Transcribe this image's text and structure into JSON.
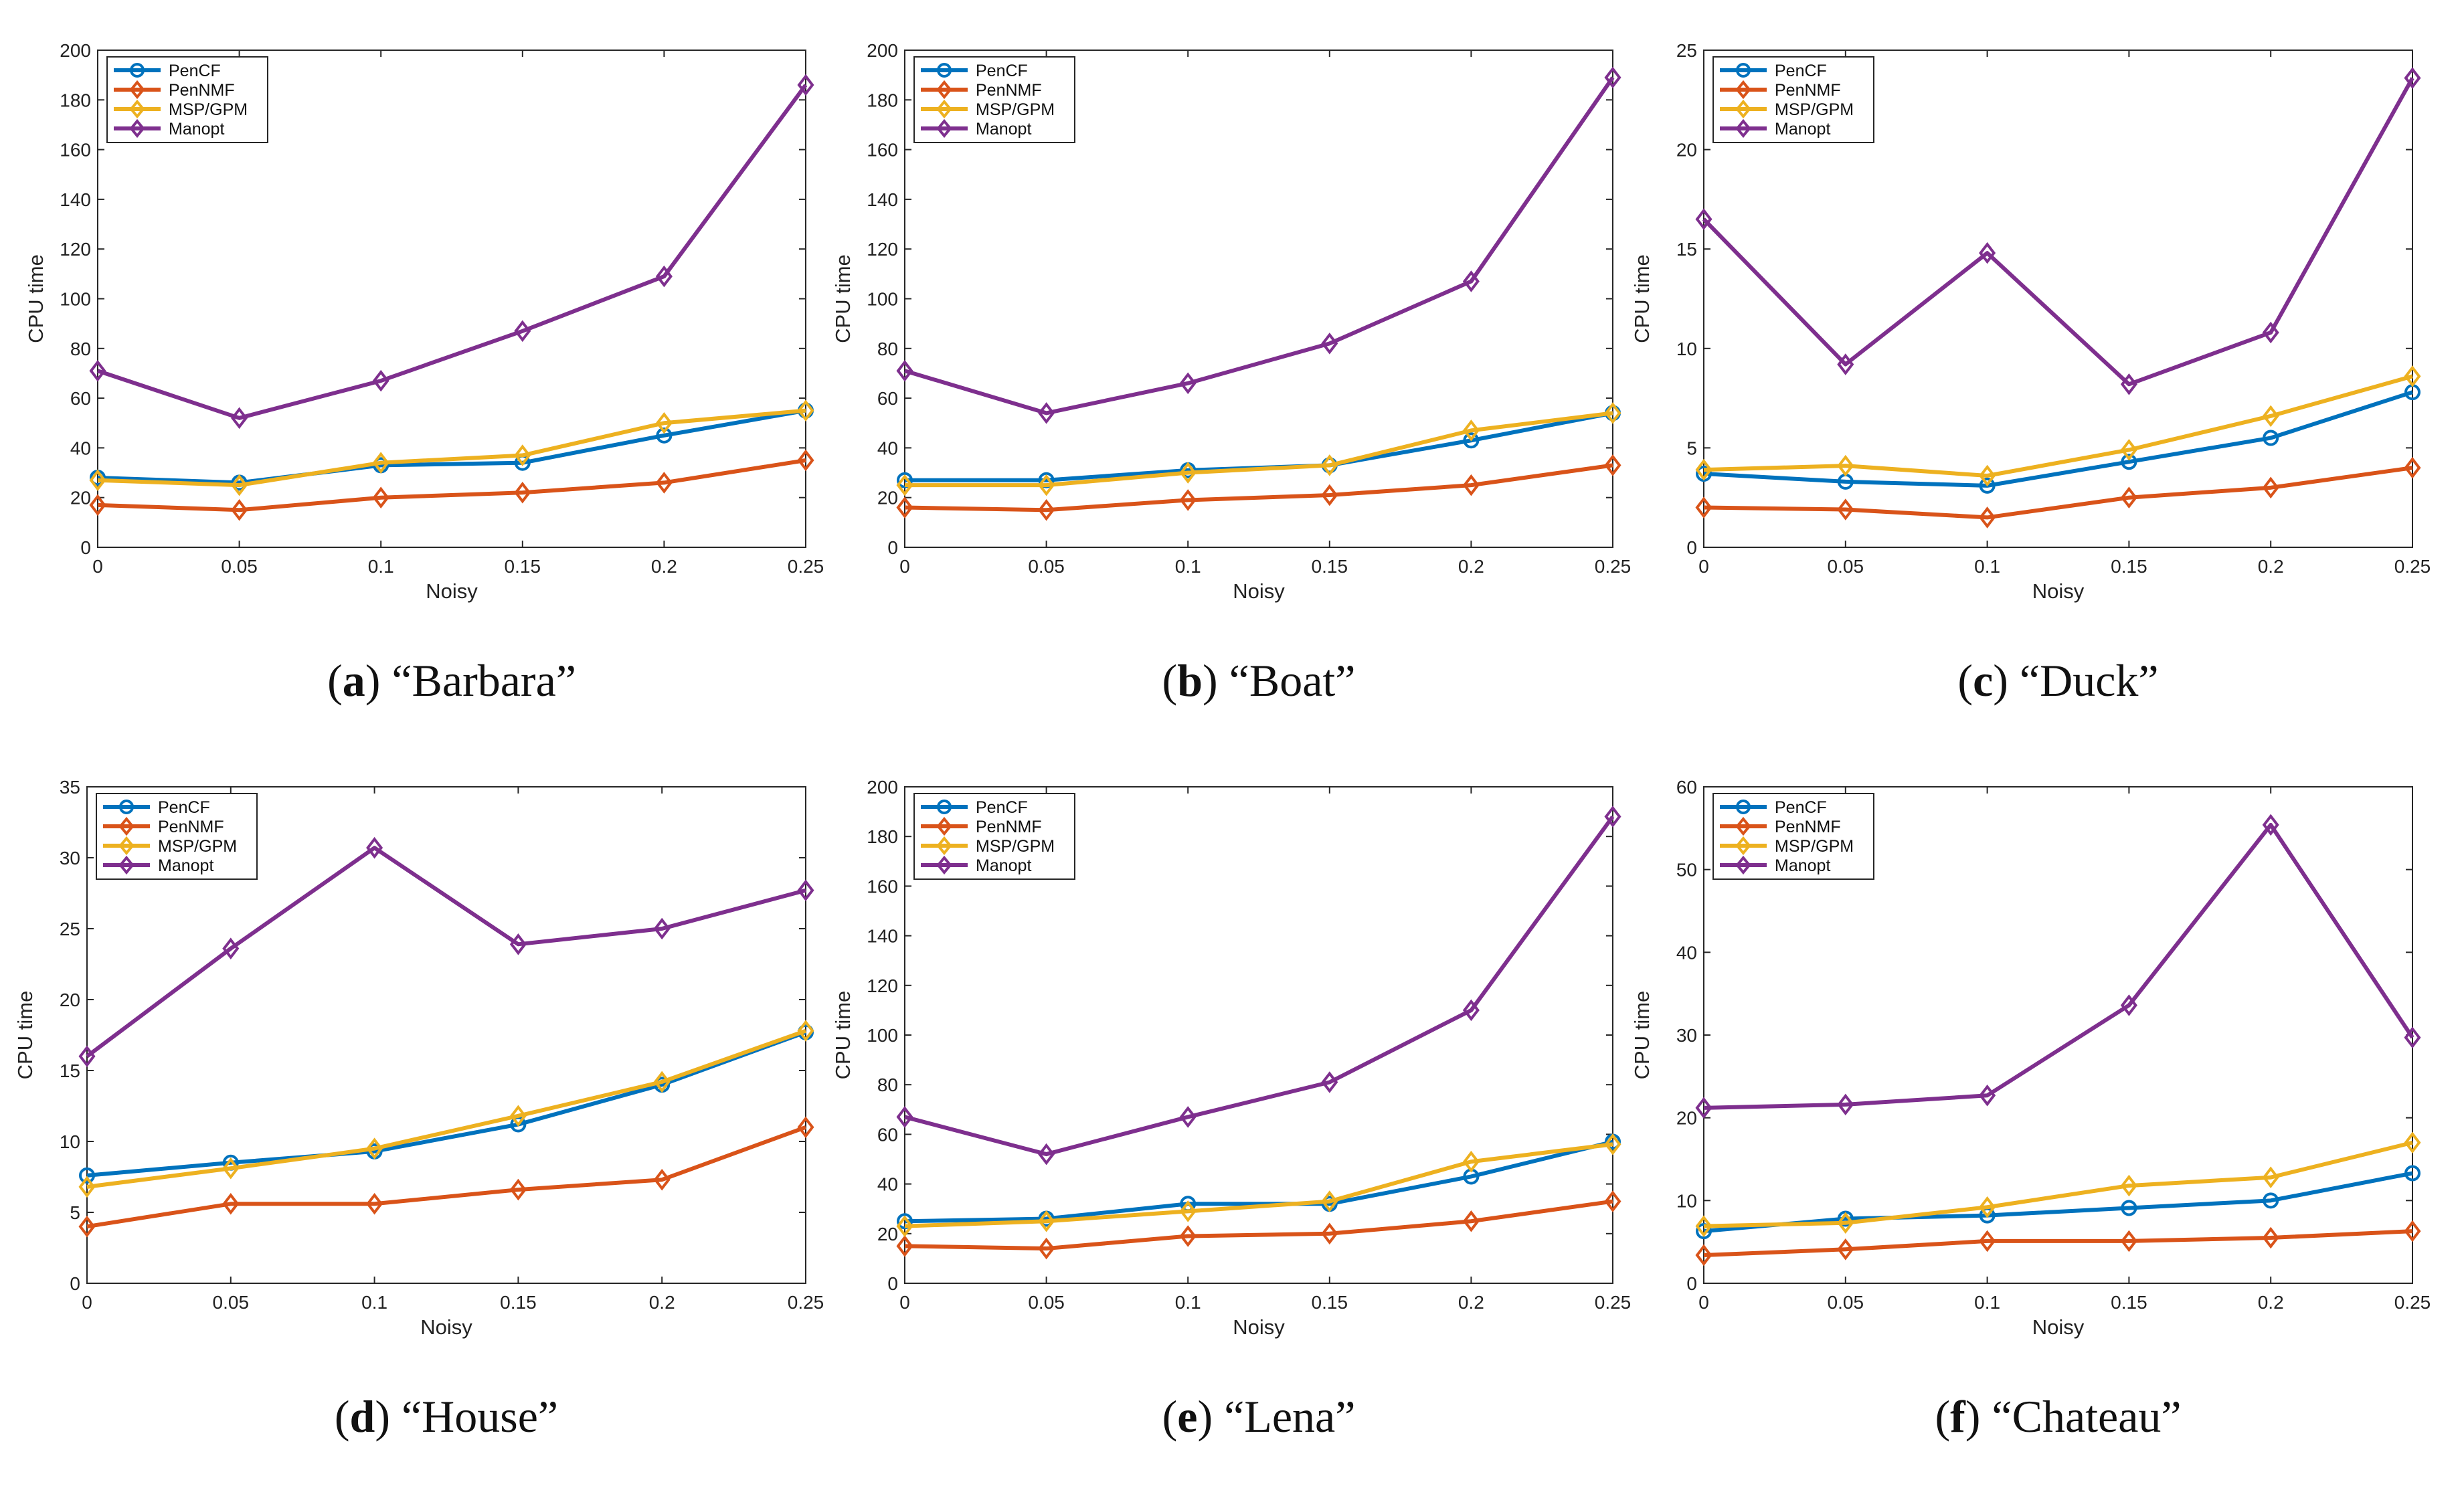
{
  "colors": {
    "PenCF": "#0072BD",
    "PenNMF": "#D95319",
    "MSP/GPM": "#EDB120",
    "Manopt": "#7E2F8E"
  },
  "chart_data": [
    {
      "type": "line",
      "caption": {
        "letter": "a",
        "name": "“Barbara”"
      },
      "xlabel": "Noisy",
      "ylabel": "CPU time",
      "x": [
        0,
        0.05,
        0.1,
        0.15,
        0.2,
        0.25
      ],
      "x_ticks": [
        "0",
        "0.05",
        "0.1",
        "0.15",
        "0.2",
        "0.25"
      ],
      "ylim": [
        0,
        200
      ],
      "y_ticks": [
        "0",
        "20",
        "40",
        "60",
        "80",
        "100",
        "120",
        "140",
        "160",
        "180",
        "200"
      ],
      "legend": "top-left",
      "series": [
        {
          "name": "PenCF",
          "marker": "circle",
          "values": [
            28,
            26,
            33,
            34,
            45,
            55
          ]
        },
        {
          "name": "PenNMF",
          "marker": "diamond",
          "values": [
            17,
            15,
            20,
            22,
            26,
            35
          ]
        },
        {
          "name": "MSP/GPM",
          "marker": "diamond",
          "values": [
            27,
            25,
            34,
            37,
            50,
            55
          ]
        },
        {
          "name": "Manopt",
          "marker": "diamond",
          "values": [
            71,
            52,
            67,
            87,
            109,
            186
          ]
        }
      ]
    },
    {
      "type": "line",
      "caption": {
        "letter": "b",
        "name": "“Boat”"
      },
      "xlabel": "Noisy",
      "ylabel": "CPU time",
      "x": [
        0,
        0.05,
        0.1,
        0.15,
        0.2,
        0.25
      ],
      "x_ticks": [
        "0",
        "0.05",
        "0.1",
        "0.15",
        "0.2",
        "0.25"
      ],
      "ylim": [
        0,
        200
      ],
      "y_ticks": [
        "0",
        "20",
        "40",
        "60",
        "80",
        "100",
        "120",
        "140",
        "160",
        "180",
        "200"
      ],
      "legend": "top-left",
      "series": [
        {
          "name": "PenCF",
          "marker": "circle",
          "values": [
            27,
            27,
            31,
            33,
            43,
            54
          ]
        },
        {
          "name": "PenNMF",
          "marker": "diamond",
          "values": [
            16,
            15,
            19,
            21,
            25,
            33
          ]
        },
        {
          "name": "MSP/GPM",
          "marker": "diamond",
          "values": [
            25,
            25,
            30,
            33,
            47,
            54
          ]
        },
        {
          "name": "Manopt",
          "marker": "diamond",
          "values": [
            71,
            54,
            66,
            82,
            107,
            189
          ]
        }
      ]
    },
    {
      "type": "line",
      "caption": {
        "letter": "c",
        "name": "“Duck”"
      },
      "xlabel": "Noisy",
      "ylabel": "CPU time",
      "x": [
        0,
        0.05,
        0.1,
        0.15,
        0.2,
        0.25
      ],
      "x_ticks": [
        "0",
        "0.05",
        "0.1",
        "0.15",
        "0.2",
        "0.25"
      ],
      "ylim": [
        0,
        25
      ],
      "y_ticks": [
        "0",
        "5",
        "10",
        "15",
        "20",
        "25"
      ],
      "legend": "top-left",
      "series": [
        {
          "name": "PenCF",
          "marker": "circle",
          "values": [
            3.7,
            3.3,
            3.1,
            4.3,
            5.5,
            7.8
          ]
        },
        {
          "name": "PenNMF",
          "marker": "diamond",
          "values": [
            2.0,
            1.9,
            1.5,
            2.5,
            3.0,
            4.0
          ]
        },
        {
          "name": "MSP/GPM",
          "marker": "diamond",
          "values": [
            3.9,
            4.1,
            3.6,
            4.9,
            6.6,
            8.6
          ]
        },
        {
          "name": "Manopt",
          "marker": "diamond",
          "values": [
            16.5,
            9.2,
            14.8,
            8.2,
            10.8,
            23.6
          ]
        }
      ]
    },
    {
      "type": "line",
      "caption": {
        "letter": "d",
        "name": "“House”"
      },
      "xlabel": "Noisy",
      "ylabel": "CPU time",
      "x": [
        0,
        0.05,
        0.1,
        0.15,
        0.2,
        0.25
      ],
      "x_ticks": [
        "0",
        "0.05",
        "0.1",
        "0.15",
        "0.2",
        "0.25"
      ],
      "ylim": [
        0,
        35
      ],
      "y_ticks": [
        "0",
        "5",
        "10",
        "15",
        "20",
        "25",
        "30",
        "35"
      ],
      "legend": "top-left",
      "series": [
        {
          "name": "PenCF",
          "marker": "circle",
          "values": [
            7.6,
            8.5,
            9.3,
            11.2,
            14.0,
            17.7
          ]
        },
        {
          "name": "PenNMF",
          "marker": "diamond",
          "values": [
            4.0,
            5.6,
            5.6,
            6.6,
            7.3,
            11.0
          ]
        },
        {
          "name": "MSP/GPM",
          "marker": "diamond",
          "values": [
            6.8,
            8.1,
            9.5,
            11.8,
            14.2,
            17.8
          ]
        },
        {
          "name": "Manopt",
          "marker": "diamond",
          "values": [
            16.0,
            23.6,
            30.7,
            23.9,
            25.0,
            27.7
          ]
        }
      ]
    },
    {
      "type": "line",
      "caption": {
        "letter": "e",
        "name": "“Lena”"
      },
      "xlabel": "Noisy",
      "ylabel": "CPU time",
      "x": [
        0,
        0.05,
        0.1,
        0.15,
        0.2,
        0.25
      ],
      "x_ticks": [
        "0",
        "0.05",
        "0.1",
        "0.15",
        "0.2",
        "0.25"
      ],
      "ylim": [
        0,
        200
      ],
      "y_ticks": [
        "0",
        "20",
        "40",
        "60",
        "80",
        "100",
        "120",
        "140",
        "160",
        "180",
        "200"
      ],
      "legend": "top-left",
      "series": [
        {
          "name": "PenCF",
          "marker": "circle",
          "values": [
            25,
            26,
            32,
            32,
            43,
            57
          ]
        },
        {
          "name": "PenNMF",
          "marker": "diamond",
          "values": [
            15,
            14,
            19,
            20,
            25,
            33
          ]
        },
        {
          "name": "MSP/GPM",
          "marker": "diamond",
          "values": [
            23,
            25,
            29,
            33,
            49,
            56
          ]
        },
        {
          "name": "Manopt",
          "marker": "diamond",
          "values": [
            67,
            52,
            67,
            81,
            110,
            188
          ]
        }
      ]
    },
    {
      "type": "line",
      "caption": {
        "letter": "f",
        "name": "“Chateau”"
      },
      "xlabel": "Noisy",
      "ylabel": "CPU time",
      "x": [
        0,
        0.05,
        0.1,
        0.15,
        0.2,
        0.25
      ],
      "x_ticks": [
        "0",
        "0.05",
        "0.1",
        "0.15",
        "0.2",
        "0.25"
      ],
      "ylim": [
        0,
        60
      ],
      "y_ticks": [
        "0",
        "10",
        "20",
        "30",
        "40",
        "50",
        "60"
      ],
      "legend": "top-left",
      "series": [
        {
          "name": "PenCF",
          "marker": "circle",
          "values": [
            6.3,
            7.8,
            8.2,
            9.1,
            10.0,
            13.3
          ]
        },
        {
          "name": "PenNMF",
          "marker": "diamond",
          "values": [
            3.4,
            4.1,
            5.1,
            5.1,
            5.5,
            6.3
          ]
        },
        {
          "name": "MSP/GPM",
          "marker": "diamond",
          "values": [
            6.9,
            7.3,
            9.2,
            11.8,
            12.8,
            17.0
          ]
        },
        {
          "name": "Manopt",
          "marker": "diamond",
          "values": [
            21.2,
            21.6,
            22.7,
            33.6,
            55.4,
            29.7
          ]
        }
      ]
    }
  ]
}
